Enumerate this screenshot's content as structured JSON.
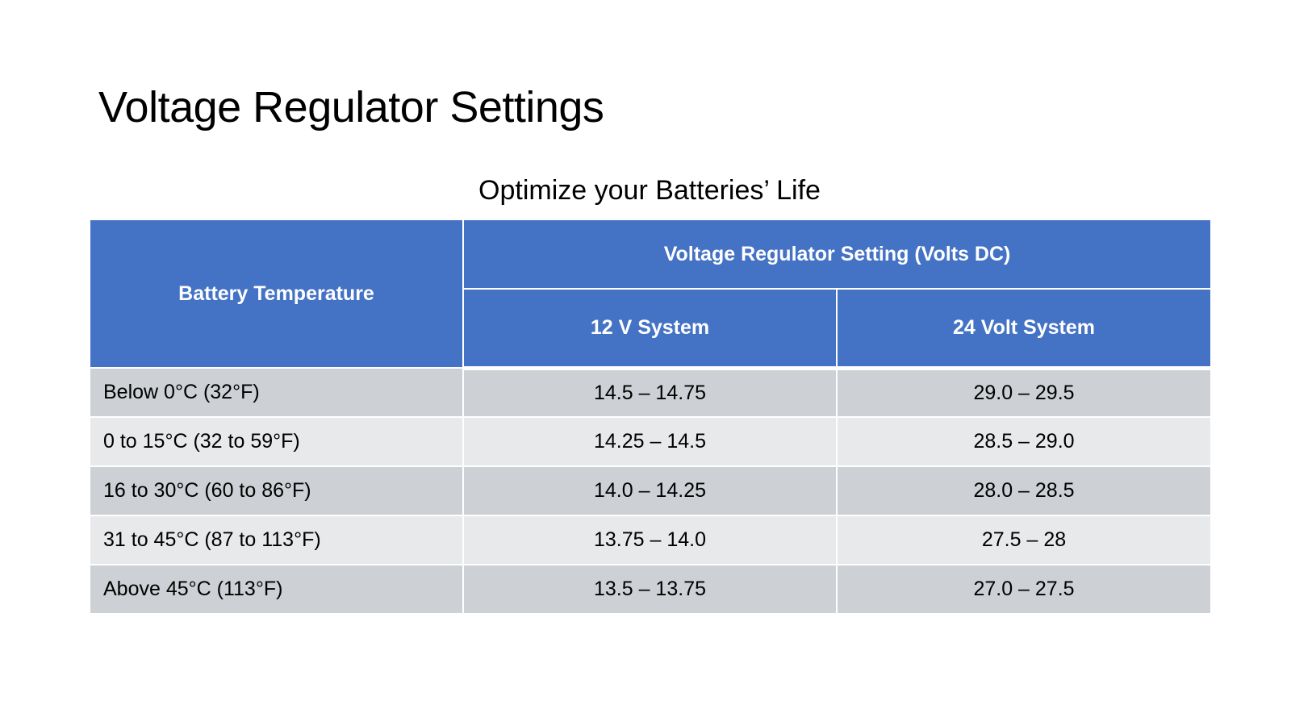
{
  "slide": {
    "title": "Voltage Regulator Settings",
    "subtitle": "Optimize your Batteries’ Life"
  },
  "table": {
    "header": {
      "temperature": "Battery Temperature",
      "group": "Voltage Regulator Setting (Volts DC)",
      "col_12v": "12 V System",
      "col_24v": "24 Volt System"
    },
    "rows": [
      {
        "temperature": "Below 0°C (32°F)",
        "v12": "14.5 – 14.75",
        "v24": "29.0 – 29.5"
      },
      {
        "temperature": "0 to 15°C (32 to 59°F)",
        "v12": "14.25 – 14.5",
        "v24": "28.5 – 29.0"
      },
      {
        "temperature": "16 to 30°C (60 to 86°F)",
        "v12": "14.0 – 14.25",
        "v24": "28.0 – 28.5"
      },
      {
        "temperature": "31 to 45°C (87 to 113°F)",
        "v12": "13.75 – 14.0",
        "v24": "27.5 – 28"
      },
      {
        "temperature": "Above 45°C (113°F)",
        "v12": "13.5 – 13.75",
        "v24": "27.0 – 27.5"
      }
    ]
  },
  "colors": {
    "header_fill": "#4472c4",
    "row_dark": "#cdd0d4",
    "row_light": "#e8e9eb"
  }
}
